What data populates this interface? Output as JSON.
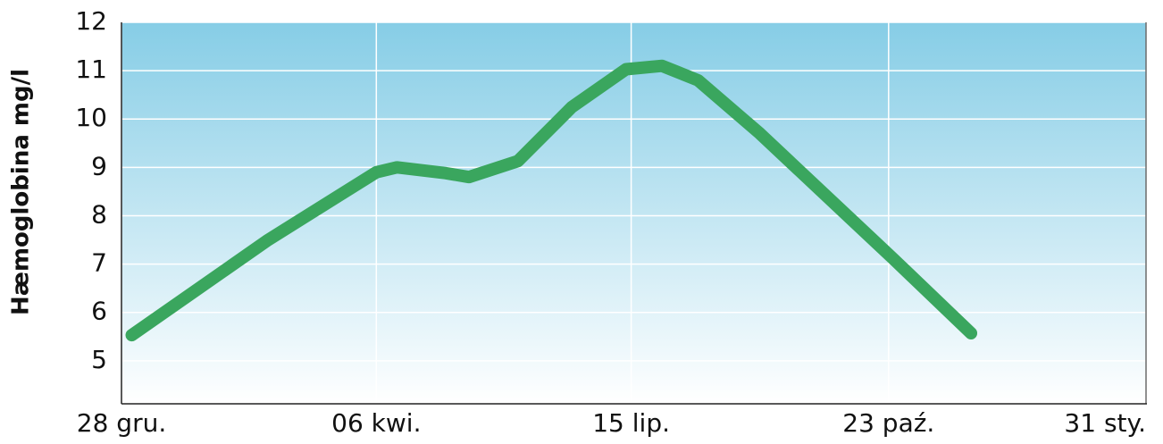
{
  "chart_data": {
    "type": "line",
    "y_label": "Hæmoglobina mg/l",
    "x": [
      4,
      57,
      99,
      107,
      126,
      135,
      154,
      175,
      196,
      210,
      224,
      248,
      300,
      330
    ],
    "series": [
      {
        "name": "Hæmoglobina",
        "color": "#3aa65e",
        "values": [
          5.53,
          7.5,
          8.9,
          9.0,
          8.88,
          8.8,
          9.13,
          10.25,
          11.03,
          11.1,
          10.8,
          9.7,
          7.1,
          5.57
        ]
      }
    ],
    "xlim": [
      0,
      398
    ],
    "xticks": [
      {
        "value": 0,
        "label": "28 gru."
      },
      {
        "value": 99,
        "label": "06 kwi."
      },
      {
        "value": 198,
        "label": "15 lip."
      },
      {
        "value": 298,
        "label": "23 paź."
      },
      {
        "value": 398,
        "label": "31 sty."
      }
    ],
    "ylim": [
      4.11,
      12
    ],
    "yticks": [
      5,
      6,
      7,
      8,
      9,
      10,
      11,
      12
    ],
    "grid": true
  }
}
